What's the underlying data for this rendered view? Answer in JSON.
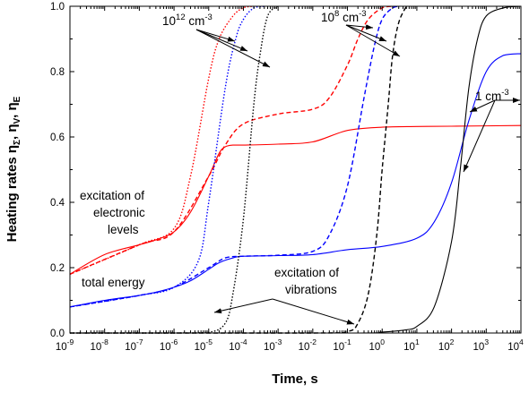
{
  "chart_data": {
    "type": "line",
    "xlabel": "Time, s",
    "ylabel": "Heating rates η",
    "ylabel_subs": [
      "Σ",
      "V",
      "E"
    ],
    "x_scale": "log",
    "xlim": [
      1e-09,
      10000.0
    ],
    "ylim": [
      0.0,
      1.0
    ],
    "x_ticks": [
      {
        "base": "10",
        "exp": "-9",
        "value": 1e-09
      },
      {
        "base": "10",
        "exp": "-8",
        "value": 1e-08
      },
      {
        "base": "10",
        "exp": "-7",
        "value": 1e-07
      },
      {
        "base": "10",
        "exp": "-6",
        "value": 1e-06
      },
      {
        "base": "10",
        "exp": "-5",
        "value": 1e-05
      },
      {
        "base": "10",
        "exp": "-4",
        "value": 0.0001
      },
      {
        "base": "10",
        "exp": "-3",
        "value": 0.001
      },
      {
        "base": "10",
        "exp": "-2",
        "value": 0.01
      },
      {
        "base": "10",
        "exp": "-1",
        "value": 0.1
      },
      {
        "base": "10",
        "exp": "0",
        "value": 1
      },
      {
        "base": "10",
        "exp": "1",
        "value": 10
      },
      {
        "base": "10",
        "exp": "2",
        "value": 100
      },
      {
        "base": "10",
        "exp": "3",
        "value": 1000
      },
      {
        "base": "10",
        "exp": "4",
        "value": 10000
      }
    ],
    "y_ticks": [
      "0.0",
      "0.2",
      "0.4",
      "0.6",
      "0.8",
      "1.0"
    ],
    "grid": false,
    "colors": {
      "electronic": "#ff0000",
      "total": "#0000ff",
      "vibrations": "#000000"
    },
    "series": [
      {
        "group": "1 cm-3",
        "kind": "electronic",
        "style": "solid",
        "x": [
          1e-09,
          1e-08,
          1e-07,
          3e-07,
          1e-06,
          3e-06,
          1e-05,
          2e-05,
          3e-05,
          5e-05,
          0.0001,
          0.001,
          0.01,
          0.1,
          1,
          10,
          100,
          10000.0
        ],
        "y": [
          0.18,
          0.24,
          0.27,
          0.285,
          0.31,
          0.37,
          0.48,
          0.55,
          0.57,
          0.575,
          0.575,
          0.578,
          0.585,
          0.62,
          0.63,
          0.632,
          0.633,
          0.635
        ]
      },
      {
        "group": "1 cm-3",
        "kind": "total",
        "style": "solid",
        "x": [
          1e-09,
          1e-08,
          1e-07,
          3e-07,
          1e-06,
          3e-06,
          1e-05,
          2e-05,
          5e-05,
          0.0001,
          0.001,
          0.01,
          0.1,
          1,
          10,
          31.6,
          100,
          316,
          1000,
          3160,
          10000.0
        ],
        "y": [
          0.08,
          0.1,
          0.115,
          0.125,
          0.14,
          0.16,
          0.195,
          0.215,
          0.23,
          0.235,
          0.237,
          0.24,
          0.255,
          0.265,
          0.29,
          0.34,
          0.46,
          0.65,
          0.8,
          0.85,
          0.855
        ]
      },
      {
        "group": "1 cm-3",
        "kind": "vibrations",
        "style": "solid",
        "x": [
          1e-09,
          0.1,
          1,
          5,
          10,
          31.6,
          100,
          178,
          316,
          562,
          1000,
          3160,
          10000.0
        ],
        "y": [
          0,
          0,
          0.003,
          0.01,
          0.02,
          0.08,
          0.28,
          0.5,
          0.75,
          0.9,
          0.97,
          0.995,
          1.0
        ]
      },
      {
        "group": "10^8 cm-3",
        "kind": "electronic",
        "style": "dash",
        "x": [
          1e-09,
          1e-07,
          1e-06,
          1e-05,
          3e-05,
          0.0001,
          0.001,
          0.01,
          0.03,
          0.1,
          0.2,
          0.4,
          1,
          2
        ],
        "y": [
          0.18,
          0.27,
          0.31,
          0.48,
          0.575,
          0.64,
          0.67,
          0.685,
          0.72,
          0.82,
          0.9,
          0.96,
          0.995,
          1.0
        ]
      },
      {
        "group": "10^8 cm-3",
        "kind": "total",
        "style": "dash",
        "x": [
          1e-09,
          1e-07,
          1e-06,
          1e-05,
          3e-05,
          0.0001,
          0.001,
          0.01,
          0.03,
          0.1,
          0.3,
          0.6,
          1,
          2,
          3
        ],
        "y": [
          0.08,
          0.115,
          0.14,
          0.2,
          0.23,
          0.235,
          0.238,
          0.25,
          0.3,
          0.45,
          0.72,
          0.88,
          0.96,
          0.995,
          1.0
        ]
      },
      {
        "group": "10^8 cm-3",
        "kind": "vibrations",
        "style": "dash",
        "x": [
          1e-09,
          0.01,
          0.1,
          0.2,
          0.4,
          0.7,
          1,
          1.5,
          2,
          3,
          5
        ],
        "y": [
          0,
          0.0,
          0.005,
          0.03,
          0.12,
          0.3,
          0.5,
          0.7,
          0.85,
          0.95,
          1.0
        ]
      },
      {
        "group": "10^12 cm-3",
        "kind": "electronic",
        "style": "dot",
        "x": [
          1e-09,
          1e-07,
          1e-06,
          3e-06,
          1e-05,
          2e-05,
          5e-05,
          0.0001,
          0.0002
        ],
        "y": [
          0.18,
          0.27,
          0.32,
          0.48,
          0.78,
          0.9,
          0.97,
          0.995,
          1.0
        ]
      },
      {
        "group": "10^12 cm-3",
        "kind": "total",
        "style": "dot",
        "x": [
          1e-09,
          1e-07,
          1e-06,
          5e-06,
          1e-05,
          3e-05,
          6e-05,
          0.0001,
          0.0002,
          0.0004
        ],
        "y": [
          0.08,
          0.115,
          0.14,
          0.22,
          0.4,
          0.75,
          0.9,
          0.96,
          0.995,
          1.0
        ]
      },
      {
        "group": "10^12 cm-3",
        "kind": "vibrations",
        "style": "dot",
        "x": [
          1e-09,
          1e-06,
          1e-05,
          3e-05,
          5e-05,
          0.0001,
          0.0002,
          0.0003,
          0.0005,
          0.001
        ],
        "y": [
          0,
          0,
          0.002,
          0.03,
          0.12,
          0.35,
          0.7,
          0.85,
          0.97,
          1.0
        ]
      }
    ],
    "annotations": {
      "label_12": {
        "base": "10",
        "exp": "12",
        "unit": " cm",
        "unit_exp": "-3"
      },
      "label_8": {
        "base": "10",
        "exp": "8",
        "unit": " cm",
        "unit_exp": "-3"
      },
      "label_1": {
        "base": "1",
        "unit": " cm",
        "unit_exp": "-3"
      },
      "excitation_electronic": [
        "excitation of",
        "electronic",
        "levels"
      ],
      "total_energy": "total energy",
      "excitation_vibrations": [
        "excitation of",
        "vibrations"
      ]
    }
  }
}
